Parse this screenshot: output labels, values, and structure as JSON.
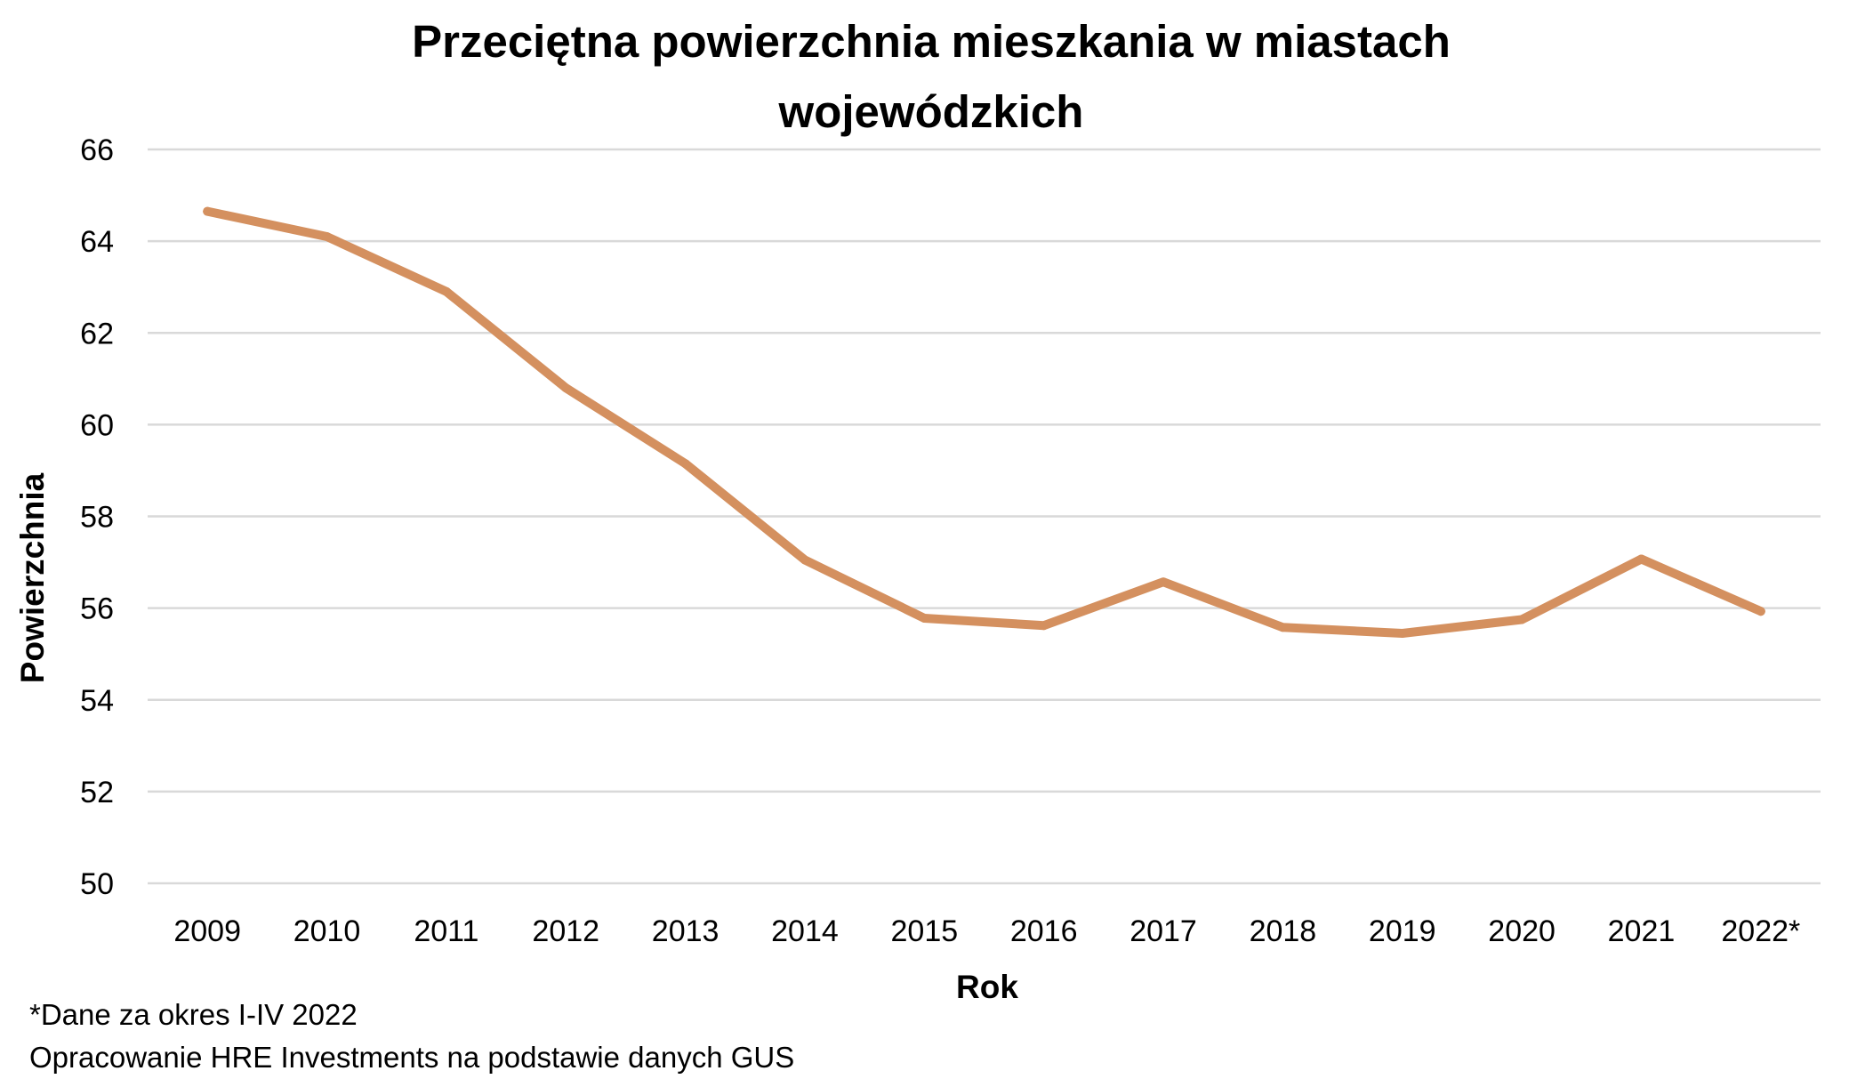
{
  "chart_data": {
    "type": "line",
    "title_lines": [
      "Przeciętna powierzchnia mieszkania w miastach",
      "wojewódzkich"
    ],
    "xlabel": "Rok",
    "ylabel": "Powierzchnia",
    "categories": [
      "2009",
      "2010",
      "2011",
      "2012",
      "2013",
      "2014",
      "2015",
      "2016",
      "2017",
      "2018",
      "2019",
      "2020",
      "2021",
      "2022*"
    ],
    "series": [
      {
        "values": [
          64.65,
          64.1,
          62.9,
          60.8,
          59.15,
          57.05,
          55.78,
          55.62,
          56.57,
          55.58,
          55.45,
          55.75,
          57.07,
          55.93
        ],
        "color": "#D4905F"
      }
    ],
    "ylim": [
      50,
      66
    ],
    "yticks": [
      "50",
      "52",
      "54",
      "56",
      "58",
      "60",
      "62",
      "64",
      "66"
    ],
    "grid": true,
    "legend": "none"
  },
  "notes": {
    "footnote": "*Dane za okres I-IV 2022",
    "source": "Opracowanie HRE Investments na podstawie danych GUS"
  },
  "colors": {
    "gridline": "#D9D9D9",
    "line": "#D4905F"
  }
}
